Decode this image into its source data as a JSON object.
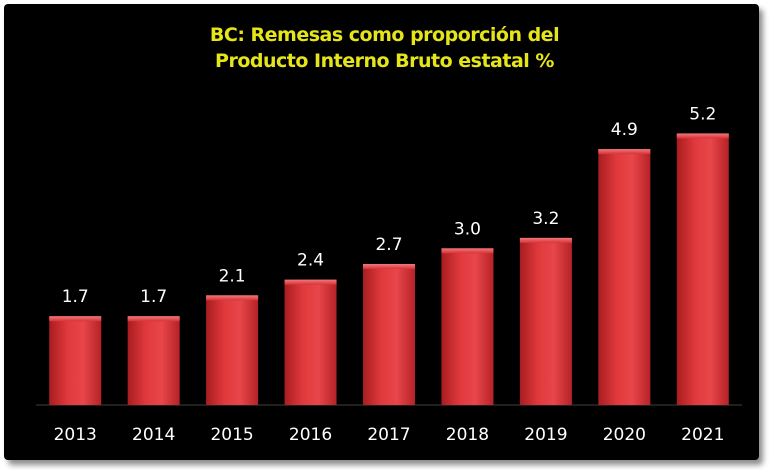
{
  "chart_data": {
    "type": "bar",
    "title": "BC: Remesas como proporción del\nProducto Interno Bruto  estatal %",
    "xlabel": "",
    "ylabel": "",
    "categories": [
      "2013",
      "2014",
      "2015",
      "2016",
      "2017",
      "2018",
      "2019",
      "2020",
      "2021"
    ],
    "series": [
      {
        "values": [
          1.7,
          1.7,
          2.1,
          2.4,
          2.7,
          3.0,
          3.2,
          4.9,
          5.2
        ],
        "data_labels": [
          "1.7",
          "1.7",
          "2.1",
          "2.4",
          "2.7",
          "3.0",
          "3.2",
          "4.9",
          "5.2"
        ]
      }
    ],
    "ylim": [
      0,
      6.3
    ],
    "grid": false,
    "legend": "none",
    "colors": {
      "background": "#000000",
      "bar": "#e0393c",
      "title": "#e5e519",
      "text": "#ffffff"
    }
  }
}
